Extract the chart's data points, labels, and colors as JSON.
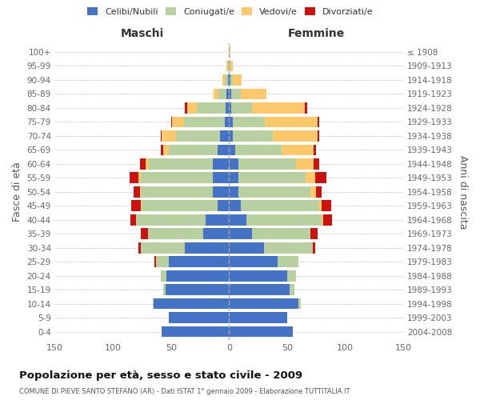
{
  "age_groups": [
    "0-4",
    "5-9",
    "10-14",
    "15-19",
    "20-24",
    "25-29",
    "30-34",
    "35-39",
    "40-44",
    "45-49",
    "50-54",
    "55-59",
    "60-64",
    "65-69",
    "70-74",
    "75-79",
    "80-84",
    "85-89",
    "90-94",
    "95-99",
    "100+"
  ],
  "birth_years": [
    "2004-2008",
    "1999-2003",
    "1994-1998",
    "1989-1993",
    "1984-1988",
    "1979-1983",
    "1974-1978",
    "1969-1973",
    "1964-1968",
    "1959-1963",
    "1954-1958",
    "1949-1953",
    "1944-1948",
    "1939-1943",
    "1934-1938",
    "1929-1933",
    "1924-1928",
    "1919-1923",
    "1914-1918",
    "1909-1913",
    "≤ 1908"
  ],
  "colors": {
    "celibe": "#4472c4",
    "coniugato": "#b8cfa0",
    "vedovo": "#ffc86b",
    "divorziato": "#cc1111"
  },
  "maschi": {
    "celibe": [
      58,
      52,
      65,
      55,
      54,
      52,
      38,
      22,
      20,
      10,
      14,
      14,
      14,
      10,
      8,
      4,
      3,
      2,
      1,
      0,
      0
    ],
    "coniugato": [
      0,
      0,
      1,
      2,
      5,
      10,
      38,
      48,
      60,
      65,
      62,
      62,
      55,
      42,
      38,
      35,
      25,
      7,
      3,
      1,
      0
    ],
    "vedovo": [
      0,
      0,
      0,
      0,
      0,
      1,
      0,
      0,
      0,
      1,
      1,
      2,
      3,
      5,
      12,
      10,
      8,
      4,
      2,
      1,
      0
    ],
    "divorziato": [
      0,
      0,
      0,
      0,
      0,
      1,
      2,
      6,
      5,
      8,
      5,
      8,
      5,
      2,
      1,
      1,
      2,
      0,
      0,
      0,
      0
    ]
  },
  "femmine": {
    "nubile": [
      55,
      50,
      60,
      52,
      50,
      42,
      30,
      20,
      15,
      10,
      8,
      8,
      8,
      5,
      3,
      3,
      2,
      2,
      1,
      0,
      0
    ],
    "coniugata": [
      0,
      0,
      2,
      4,
      8,
      18,
      42,
      50,
      65,
      68,
      62,
      58,
      50,
      40,
      35,
      28,
      18,
      8,
      2,
      1,
      0
    ],
    "vedova": [
      0,
      0,
      0,
      0,
      0,
      0,
      0,
      0,
      1,
      2,
      5,
      8,
      15,
      28,
      38,
      45,
      45,
      22,
      8,
      2,
      1
    ],
    "divorziata": [
      0,
      0,
      0,
      0,
      0,
      0,
      2,
      6,
      8,
      8,
      5,
      10,
      5,
      2,
      2,
      2,
      2,
      0,
      0,
      0,
      0
    ]
  },
  "title_main": "Popolazione per età, sesso e stato civile - 2009",
  "title_sub": "COMUNE DI PIEVE SANTO STEFANO (AR) - Dati ISTAT 1° gennaio 2009 - Elaborazione TUTTITALIA.IT",
  "xlabel_left": "Maschi",
  "xlabel_right": "Femmine",
  "ylabel": "Fasce di età",
  "ylabel_right": "Anni di nascita",
  "xlim": 150,
  "legend_labels": [
    "Celibi/Nubili",
    "Coniugati/e",
    "Vedovi/e",
    "Divorziati/e"
  ],
  "bg_color": "#ffffff",
  "grid_color": "#cccccc"
}
